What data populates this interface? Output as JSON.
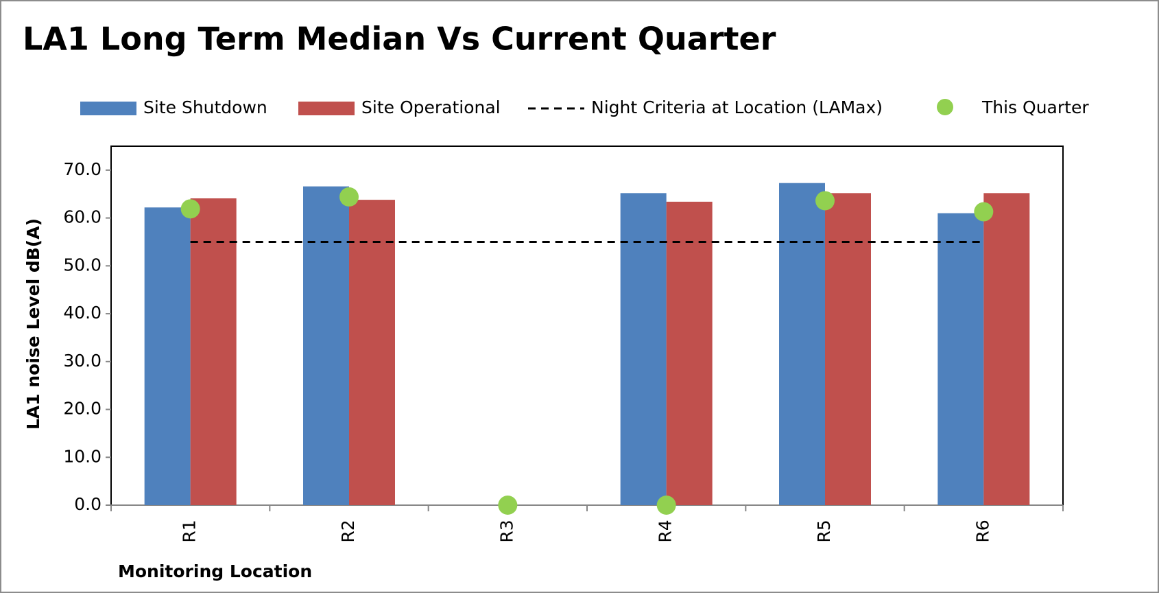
{
  "chart_data": {
    "type": "bar",
    "title": "LA1 Long Term Median Vs Current Quarter",
    "x_label": "Monitoring Location",
    "y_label": "LA1 noise Level dB(A)",
    "categories": [
      "R1",
      "R2",
      "R3",
      "R4",
      "R5",
      "R6"
    ],
    "series": [
      {
        "name": "Site Shutdown",
        "type": "bar",
        "color": "#4f81bd",
        "values": [
          62.2,
          66.6,
          null,
          65.2,
          67.3,
          61.0
        ]
      },
      {
        "name": "Site Operational",
        "type": "bar",
        "color": "#c0504d",
        "values": [
          64.1,
          63.8,
          null,
          63.4,
          65.2,
          65.2
        ]
      },
      {
        "name": "Night Criteria at Location (LAMax)",
        "type": "line",
        "dashed": true,
        "color": "#000000",
        "values": [
          55,
          55,
          55,
          55,
          55,
          55
        ]
      },
      {
        "name": "This Quarter",
        "type": "scatter",
        "color": "#92d050",
        "values": [
          61.9,
          64.4,
          0,
          0,
          63.6,
          61.3
        ]
      }
    ],
    "ylim": [
      0,
      75
    ],
    "yticks": [
      {
        "value": 0,
        "label": "0.0"
      },
      {
        "value": 10,
        "label": "10.0"
      },
      {
        "value": 20,
        "label": "20.0"
      },
      {
        "value": 30,
        "label": "30.0"
      },
      {
        "value": 40,
        "label": "40.0"
      },
      {
        "value": 50,
        "label": "50.0"
      },
      {
        "value": 60,
        "label": "60.0"
      },
      {
        "value": 70,
        "label": "70.0"
      }
    ],
    "grid": false,
    "legend": "top"
  }
}
